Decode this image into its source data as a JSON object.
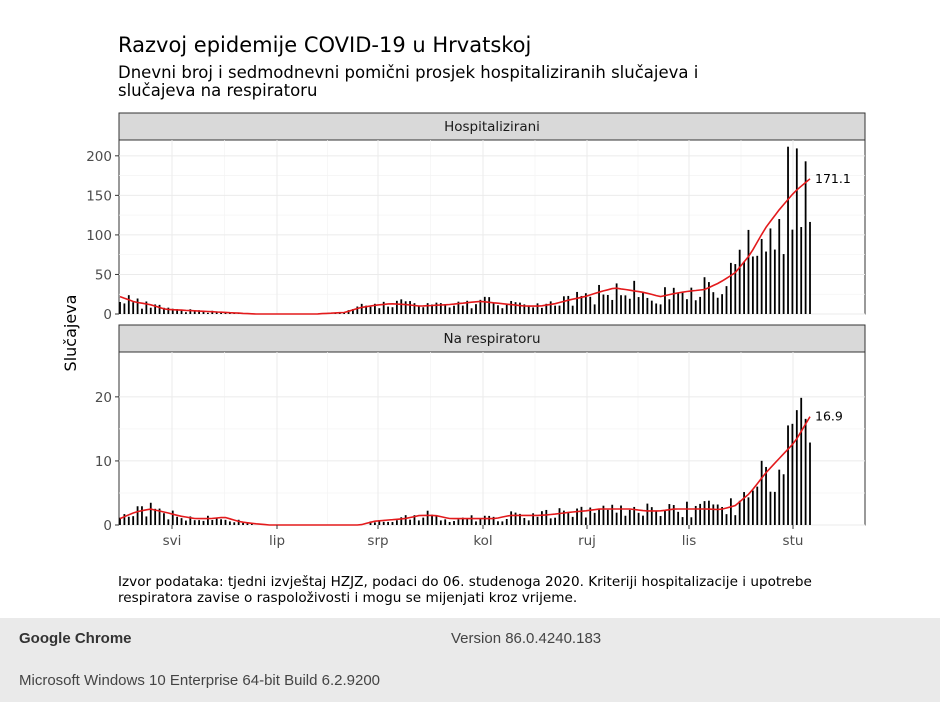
{
  "chart_data": {
    "type": "bar",
    "title": "Razvoj epidemije COVID-19 u Hrvatskoj",
    "subtitle": "Dnevni broj i sedmodnevni pomični prosjek hospitaliziranih slučajeva i slučajeva na respiratoru",
    "ylabel": "Slučajeva",
    "caption": "Izvor podataka: tjedni izvještaj HZJZ, podaci do 06. studenoga 2020. Kriteriji hospitalizacije i upotrebe respiratora zavise o raspoloživosti i mogu se mijenjati kroz vrijeme.",
    "x_tick_labels": [
      "svi",
      "lip",
      "srp",
      "kol",
      "ruj",
      "lis",
      "stu"
    ],
    "grid": true,
    "colors": {
      "bars": "#000000",
      "moving_average": "#e31a1c",
      "strip": "#d9d9d9"
    },
    "panels": [
      {
        "strip": "Hospitalizirani",
        "ylim": [
          0,
          220
        ],
        "y_ticks": [
          0,
          50,
          100,
          150,
          200
        ],
        "end_label": "171.1",
        "week_values": [
          22,
          15,
          12,
          6,
          5,
          4,
          3,
          2,
          1,
          0,
          0,
          0,
          0,
          0,
          1,
          2,
          8,
          11,
          13,
          12,
          10,
          11,
          12,
          14,
          16,
          14,
          12,
          10,
          10,
          13,
          18,
          22,
          28,
          33,
          30,
          27,
          22,
          26,
          29,
          31,
          40,
          52,
          75,
          108,
          133,
          155,
          171
        ]
      },
      {
        "strip": "Na respiratoru",
        "ylim": [
          0,
          27
        ],
        "y_ticks": [
          0,
          10,
          20
        ],
        "end_label": "16.9",
        "week_values": [
          1,
          2,
          2.5,
          2,
          1.4,
          1,
          1,
          1.2,
          0.5,
          0.2,
          0,
          0,
          0,
          0,
          0,
          0,
          0,
          0.6,
          0.8,
          1,
          1.5,
          1.5,
          1,
          1,
          1,
          1,
          1.5,
          1.5,
          1.5,
          1.7,
          2,
          2.2,
          2.5,
          2.5,
          2.5,
          2.2,
          2.2,
          2.5,
          2.5,
          2.5,
          2.4,
          3,
          5,
          8,
          10.5,
          13,
          16.9
        ]
      }
    ]
  },
  "system_info": {
    "browser_name": "Google Chrome",
    "browser_version": "Version 86.0.4240.183",
    "os": "Microsoft Windows 10 Enterprise 64-bit Build 6.2.9200"
  }
}
